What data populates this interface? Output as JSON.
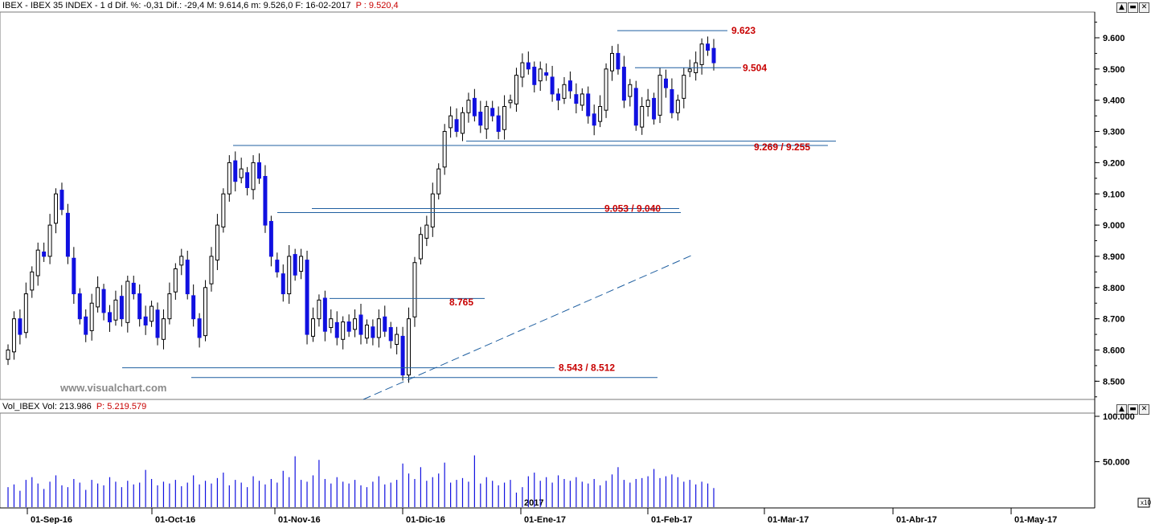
{
  "price_header": {
    "title": "IBEX - IBEX 35 INDEX - 1 d Dif. %: -0,31  Dif.: -29,4  M: 9.614,6  m: 9.526,0  F: 16-02-2017",
    "last": "P : 9.520,4"
  },
  "volume_header": {
    "title": "Vol_IBEX Vol: 213.986",
    "last": "P: 5.219.579"
  },
  "watermark": "www.visualchart.com",
  "window_buttons": [
    "▲",
    "▬",
    "✕"
  ],
  "volume_scale_label": "x10",
  "colors": {
    "accent_line": "#1f5fa0",
    "bear_fill": "#1010e0",
    "label_red": "#c80000",
    "volume_bar": "#1010e0",
    "watermark": "#8a8a8a"
  },
  "chart_data": [
    {
      "type": "candlestick",
      "title": "IBEX - IBEX 35 INDEX",
      "x": [
        "01-Sep-16",
        "01-Oct-16",
        "01-Nov-16",
        "01-Dic-16",
        "2017",
        "01-Ene-17",
        "01-Feb-17",
        "01-Mar-17",
        "01-Abr-17",
        "01-May-17"
      ],
      "ylim": [
        8420,
        9660
      ],
      "y_ticks": [
        "8.500",
        "8.600",
        "8.700",
        "8.800",
        "8.900",
        "9.000",
        "9.100",
        "9.200",
        "9.300",
        "9.400",
        "9.500",
        "9.600"
      ],
      "closes_approx": [
        8600,
        8700,
        8650,
        8780,
        8850,
        8920,
        8900,
        9000,
        9100,
        9050,
        8900,
        8780,
        8700,
        8650,
        8750,
        8800,
        8720,
        8690,
        8760,
        8700,
        8820,
        8780,
        8700,
        8680,
        8740,
        8640,
        8700,
        8780,
        8860,
        8900,
        8780,
        8700,
        8640,
        8800,
        8900,
        9000,
        9100,
        9200,
        9140,
        9180,
        9120,
        9200,
        9150,
        9000,
        8900,
        8850,
        8780,
        8900,
        8840,
        8900,
        8650,
        8700,
        8760,
        8660,
        8700,
        8640,
        8690,
        8660,
        8700,
        8650,
        8680,
        8640,
        8700,
        8660,
        8630,
        8650,
        8520,
        8700,
        8880,
        8970,
        9000,
        9100,
        9180,
        9300,
        9350,
        9300,
        9360,
        9400,
        9350,
        9320,
        9380,
        9350,
        9300,
        9380,
        9400,
        9480,
        9520,
        9500,
        9450,
        9500,
        9480,
        9420,
        9400,
        9450,
        9430,
        9390,
        9420,
        9350,
        9320,
        9380,
        9500,
        9550,
        9500,
        9400,
        9450,
        9320,
        9380,
        9400,
        9340,
        9480,
        9440,
        9360,
        9400,
        9480,
        9500,
        9520,
        9580,
        9560,
        9520
      ],
      "annotations": [
        {
          "label": "9.623",
          "levels": [
            9623
          ]
        },
        {
          "label": "9.504",
          "levels": [
            9504
          ]
        },
        {
          "label": "9.269 / 9.255",
          "levels": [
            9269,
            9255
          ]
        },
        {
          "label": "9.053 / 9.040",
          "levels": [
            9053,
            9040
          ]
        },
        {
          "label": "8.765",
          "levels": [
            8765
          ]
        },
        {
          "label": "8.543 / 8.512",
          "levels": [
            8543,
            8512
          ]
        }
      ]
    },
    {
      "type": "bar",
      "title": "Vol_IBEX",
      "ylim": [
        0,
        110000
      ],
      "y_ticks": [
        "50.000",
        "100.000"
      ],
      "values_approx": [
        22000,
        25000,
        18000,
        30000,
        33000,
        26000,
        20000,
        28000,
        35000,
        24000,
        22000,
        31000,
        27000,
        19000,
        30000,
        26000,
        24000,
        33000,
        28000,
        22000,
        29000,
        25000,
        27000,
        41000,
        31000,
        24000,
        28000,
        26000,
        30000,
        23000,
        27000,
        35000,
        25000,
        29000,
        26000,
        32000,
        38000,
        24000,
        30000,
        27000,
        22000,
        34000,
        29000,
        25000,
        31000,
        27000,
        40000,
        33000,
        56000,
        30000,
        28000,
        35000,
        52000,
        31000,
        26000,
        33000,
        28000,
        26000,
        30000,
        24000,
        22000,
        28000,
        34000,
        25000,
        27000,
        30000,
        48000,
        37000,
        31000,
        44000,
        29000,
        33000,
        37000,
        49000,
        27000,
        30000,
        32000,
        28000,
        57000,
        26000,
        33000,
        29000,
        24000,
        27000,
        30000,
        16000,
        22000,
        34000,
        38000,
        29000,
        33000,
        27000,
        35000,
        31000,
        29000,
        33000,
        28000,
        26000,
        31000,
        24000,
        29000,
        36000,
        44000,
        30000,
        27000,
        31000,
        32000,
        34000,
        42000,
        32000,
        34000,
        36000,
        33000,
        28000,
        30000,
        25000,
        28000,
        26000,
        21000
      ]
    }
  ]
}
